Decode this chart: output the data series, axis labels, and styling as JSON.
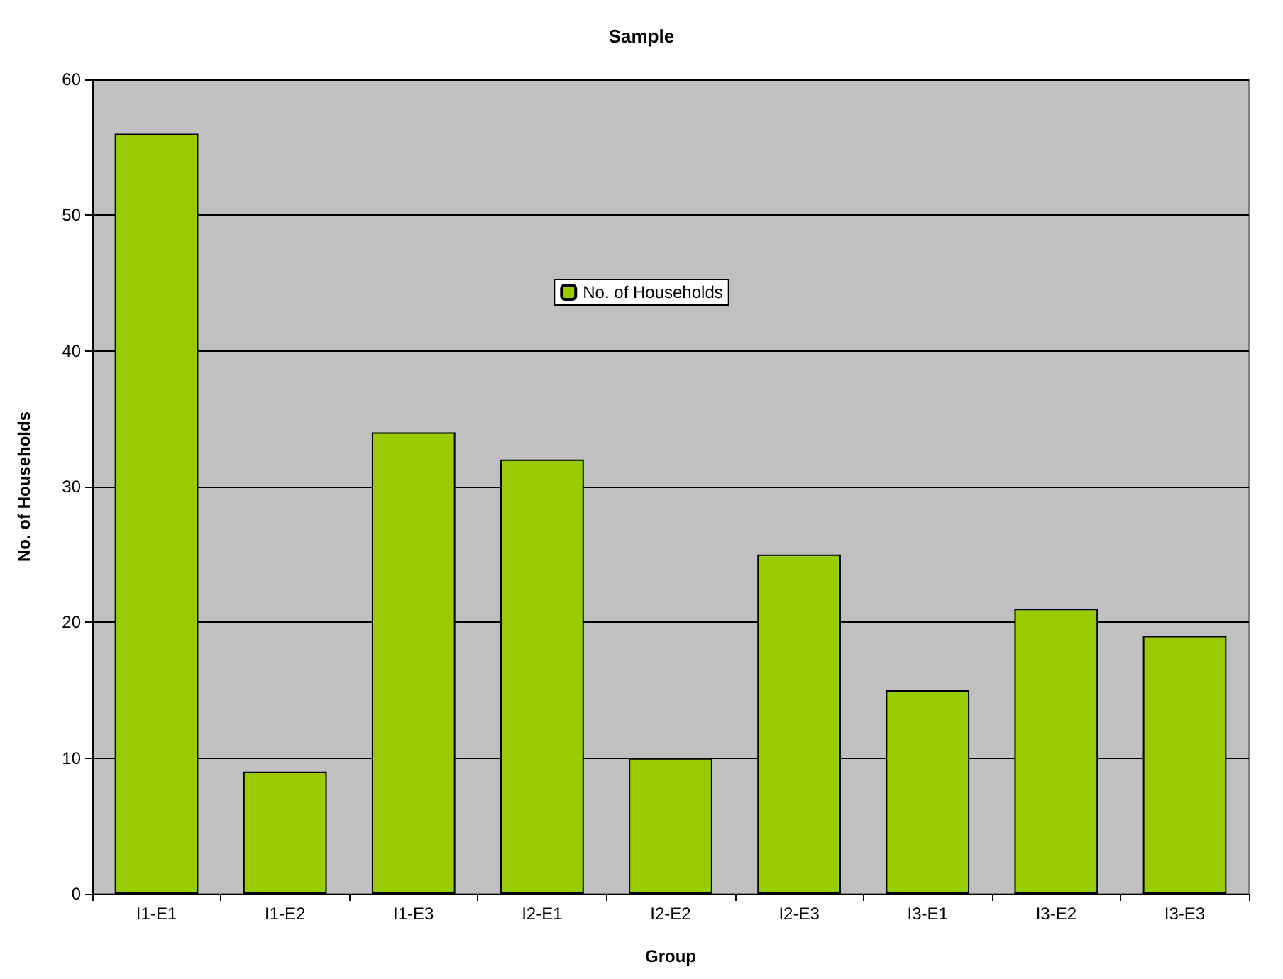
{
  "chart_data": {
    "type": "bar",
    "title": "Sample",
    "xlabel": "Group",
    "ylabel": "No. of Households",
    "categories": [
      "I1-E1",
      "I1-E2",
      "I1-E3",
      "I2-E1",
      "I2-E2",
      "I2-E3",
      "I3-E1",
      "I3-E2",
      "I3-E3"
    ],
    "series": [
      {
        "name": "No. of Households",
        "color": "#99cc00",
        "values": [
          56,
          9,
          34,
          32,
          10,
          25,
          15,
          21,
          19
        ]
      }
    ],
    "ylim": [
      0,
      60
    ],
    "yticks": [
      0,
      10,
      20,
      30,
      40,
      50,
      60
    ],
    "grid": "y",
    "legend": "top"
  }
}
